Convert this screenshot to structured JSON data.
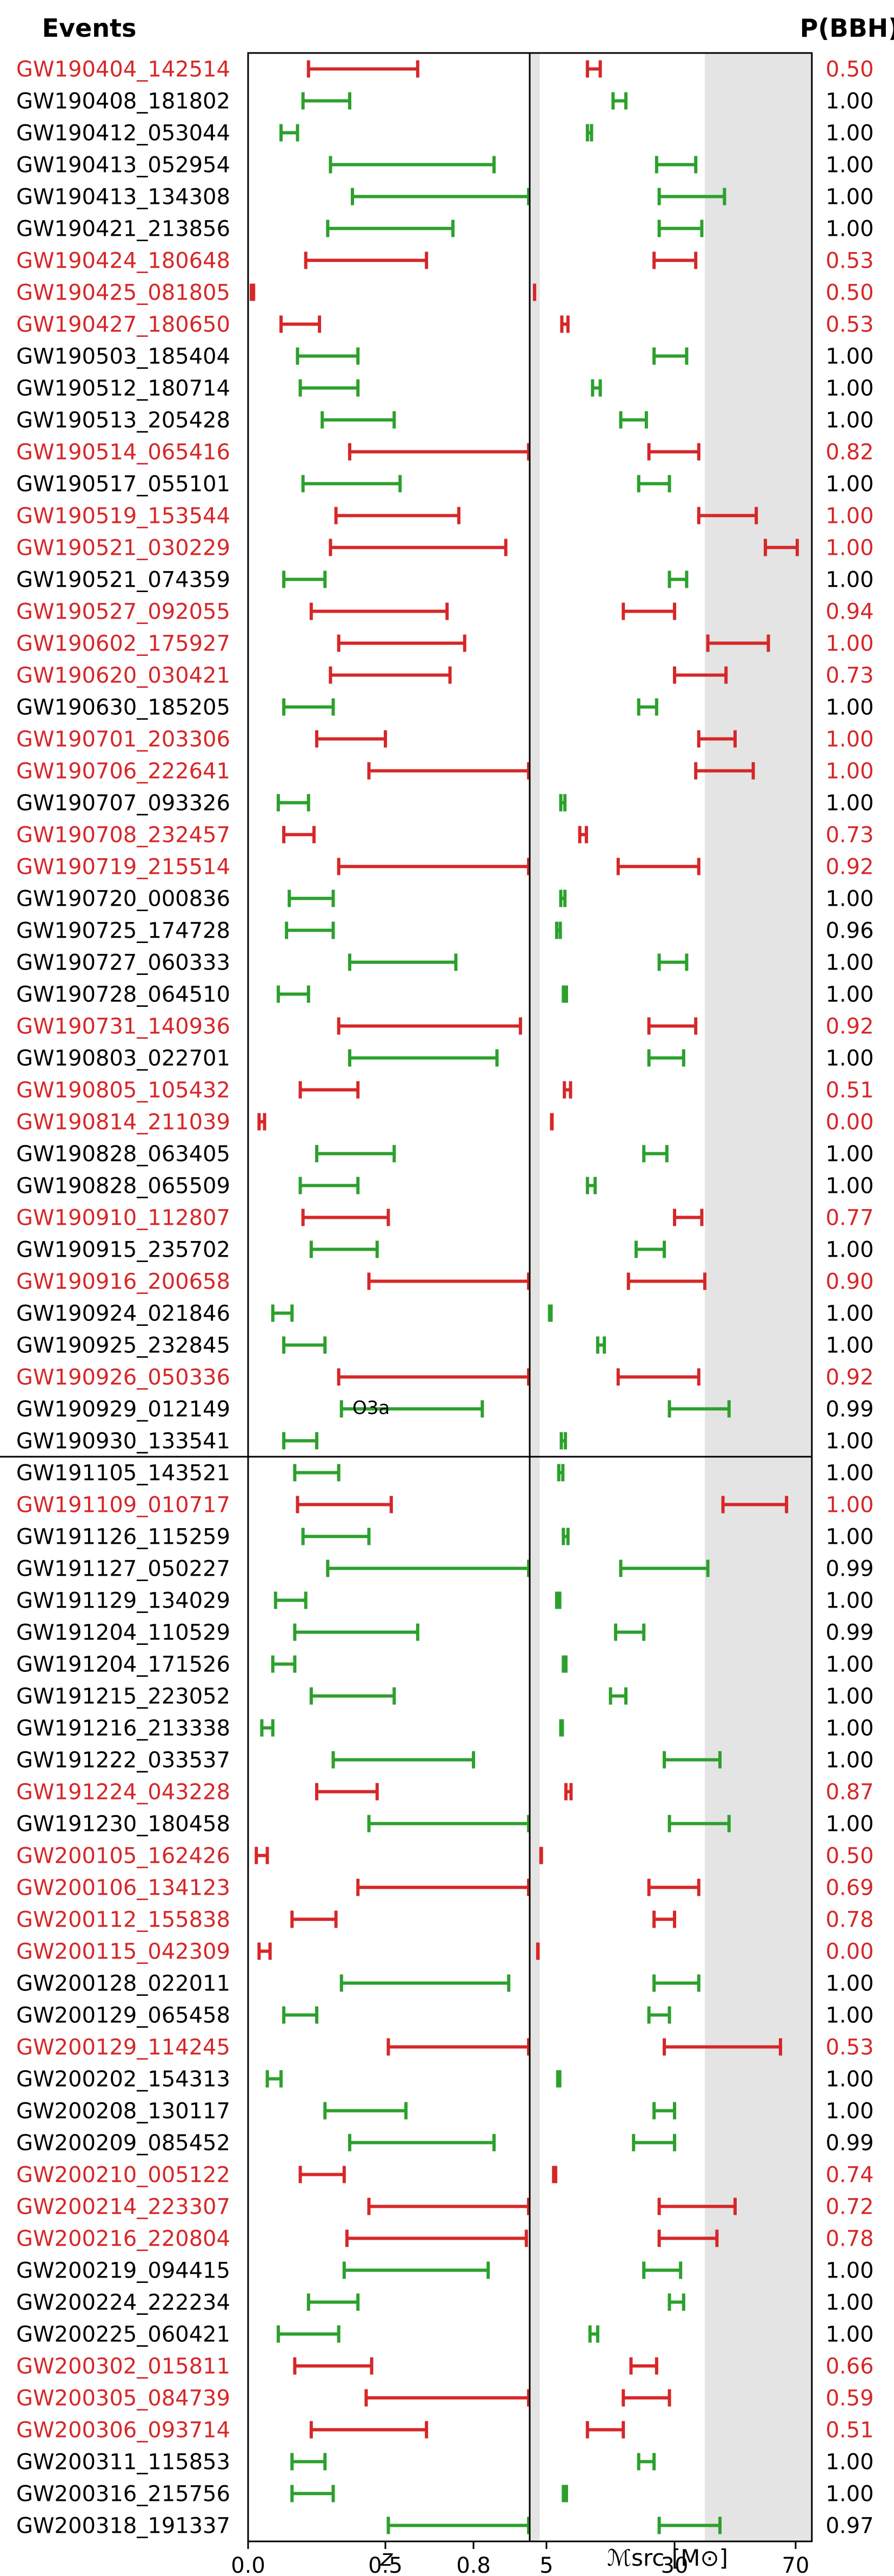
{
  "chart_data": {
    "type": "interval",
    "header_left": "Events",
    "header_right": "P(BBH)",
    "run_label": "O3a",
    "colors": {
      "bbh": "#2ca02c",
      "uncertain": "#d62728",
      "text_uncertain": "#d62728",
      "text_normal": "#000000",
      "shade": "#e4e4e4"
    },
    "left_panel": {
      "xlabel": "z",
      "tick_labels": [
        "0.0",
        "0.5",
        "0.8"
      ],
      "tick_values": [
        0.0,
        0.5,
        0.8
      ]
    },
    "right_panel": {
      "xlabel": "ℳsrc [M⊙]",
      "tick_labels": [
        "5",
        "30",
        "70"
      ],
      "tick_values": [
        5,
        30,
        70
      ]
    },
    "events": [
      {
        "name": "GW190404_142514",
        "z": [
          0.22,
          0.61
        ],
        "mc": [
          13.0,
          15.5
        ],
        "p": "0.50",
        "red": true
      },
      {
        "name": "GW190408_181802",
        "z": [
          0.2,
          0.37
        ],
        "mc": [
          18.0,
          20.5
        ],
        "p": "1.00",
        "red": false
      },
      {
        "name": "GW190412_053044",
        "z": [
          0.12,
          0.18
        ],
        "mc": [
          13.0,
          13.8
        ],
        "p": "1.00",
        "red": false
      },
      {
        "name": "GW190413_052954",
        "z": [
          0.3,
          0.87
        ],
        "mc": [
          26.5,
          37.0
        ],
        "p": "1.00",
        "red": false
      },
      {
        "name": "GW190413_134308",
        "z": [
          0.38,
          1.02
        ],
        "mc": [
          27.0,
          46.5
        ],
        "p": "1.00",
        "red": false
      },
      {
        "name": "GW190421_213856",
        "z": [
          0.29,
          0.73
        ],
        "mc": [
          27.0,
          39.0
        ],
        "p": "1.00",
        "red": false
      },
      {
        "name": "GW190424_180648",
        "z": [
          0.21,
          0.64
        ],
        "mc": [
          26.0,
          37.0
        ],
        "p": "0.53",
        "red": true
      },
      {
        "name": "GW190425_081805",
        "z": [
          0.01,
          0.02
        ],
        "mc": [
          1.44,
          1.46
        ],
        "p": "0.50",
        "red": true
      },
      {
        "name": "GW190427_180650",
        "z": [
          0.12,
          0.26
        ],
        "mc": [
          8.0,
          9.2
        ],
        "p": "0.53",
        "red": true
      },
      {
        "name": "GW190503_185404",
        "z": [
          0.18,
          0.4
        ],
        "mc": [
          26.0,
          34.0
        ],
        "p": "1.00",
        "red": false
      },
      {
        "name": "GW190512_180714",
        "z": [
          0.19,
          0.4
        ],
        "mc": [
          14.0,
          15.5
        ],
        "p": "1.00",
        "red": false
      },
      {
        "name": "GW190513_205428",
        "z": [
          0.27,
          0.53
        ],
        "mc": [
          19.5,
          24.5
        ],
        "p": "1.00",
        "red": false
      },
      {
        "name": "GW190514_065416",
        "z": [
          0.37,
          1.03
        ],
        "mc": [
          25.0,
          38.0
        ],
        "p": "0.82",
        "red": true
      },
      {
        "name": "GW190517_055101",
        "z": [
          0.2,
          0.55
        ],
        "mc": [
          23.0,
          29.0
        ],
        "p": "1.00",
        "red": false
      },
      {
        "name": "GW190519_153544",
        "z": [
          0.32,
          0.75
        ],
        "mc": [
          38.0,
          57.0
        ],
        "p": "1.00",
        "red": true
      },
      {
        "name": "GW190521_030229",
        "z": [
          0.3,
          0.91
        ],
        "mc": [
          60.0,
          72.0
        ],
        "p": "1.00",
        "red": true
      },
      {
        "name": "GW190521_074359",
        "z": [
          0.13,
          0.28
        ],
        "mc": [
          29.0,
          34.0
        ],
        "p": "1.00",
        "red": false
      },
      {
        "name": "GW190527_092055",
        "z": [
          0.23,
          0.71
        ],
        "mc": [
          20.0,
          30.0
        ],
        "p": "0.94",
        "red": true
      },
      {
        "name": "GW190602_175927",
        "z": [
          0.33,
          0.77
        ],
        "mc": [
          41.0,
          61.0
        ],
        "p": "1.00",
        "red": true
      },
      {
        "name": "GW190620_030421",
        "z": [
          0.3,
          0.72
        ],
        "mc": [
          30.0,
          47.0
        ],
        "p": "0.73",
        "red": true
      },
      {
        "name": "GW190630_185205",
        "z": [
          0.13,
          0.31
        ],
        "mc": [
          23.0,
          26.5
        ],
        "p": "1.00",
        "red": false
      },
      {
        "name": "GW190701_203306",
        "z": [
          0.25,
          0.5
        ],
        "mc": [
          38.0,
          50.0
        ],
        "p": "1.00",
        "red": true
      },
      {
        "name": "GW190706_222641",
        "z": [
          0.44,
          1.04
        ],
        "mc": [
          37.0,
          56.0
        ],
        "p": "1.00",
        "red": true
      },
      {
        "name": "GW190707_093326",
        "z": [
          0.11,
          0.22
        ],
        "mc": [
          7.8,
          8.6
        ],
        "p": "1.00",
        "red": false
      },
      {
        "name": "GW190708_232457",
        "z": [
          0.13,
          0.24
        ],
        "mc": [
          11.5,
          12.8
        ],
        "p": "0.73",
        "red": true
      },
      {
        "name": "GW190719_215514",
        "z": [
          0.33,
          1.08
        ],
        "mc": [
          19.0,
          38.0
        ],
        "p": "0.92",
        "red": true
      },
      {
        "name": "GW190720_000836",
        "z": [
          0.15,
          0.31
        ],
        "mc": [
          7.8,
          8.6
        ],
        "p": "1.00",
        "red": false
      },
      {
        "name": "GW190725_174728",
        "z": [
          0.14,
          0.31
        ],
        "mc": [
          7.0,
          7.7
        ],
        "p": "0.96",
        "red": false
      },
      {
        "name": "GW190727_060333",
        "z": [
          0.37,
          0.74
        ],
        "mc": [
          27.0,
          34.0
        ],
        "p": "1.00",
        "red": false
      },
      {
        "name": "GW190728_064510",
        "z": [
          0.11,
          0.22
        ],
        "mc": [
          8.3,
          8.9
        ],
        "p": "1.00",
        "red": false
      },
      {
        "name": "GW190731_140936",
        "z": [
          0.33,
          0.96
        ],
        "mc": [
          25.0,
          37.0
        ],
        "p": "0.92",
        "red": true
      },
      {
        "name": "GW190803_022701",
        "z": [
          0.37,
          0.88
        ],
        "mc": [
          25.0,
          33.0
        ],
        "p": "1.00",
        "red": false
      },
      {
        "name": "GW190805_105432",
        "z": [
          0.19,
          0.4
        ],
        "mc": [
          8.5,
          9.7
        ],
        "p": "0.51",
        "red": true
      },
      {
        "name": "GW190814_211039",
        "z": [
          0.04,
          0.06
        ],
        "mc": [
          6.0,
          6.1
        ],
        "p": "0.00",
        "red": true
      },
      {
        "name": "GW190828_063405",
        "z": [
          0.25,
          0.53
        ],
        "mc": [
          24.0,
          28.5
        ],
        "p": "1.00",
        "red": false
      },
      {
        "name": "GW190828_065509",
        "z": [
          0.19,
          0.4
        ],
        "mc": [
          13.0,
          14.5
        ],
        "p": "1.00",
        "red": false
      },
      {
        "name": "GW190910_112807",
        "z": [
          0.2,
          0.51
        ],
        "mc": [
          30.0,
          39.0
        ],
        "p": "0.77",
        "red": true
      },
      {
        "name": "GW190915_235702",
        "z": [
          0.23,
          0.47
        ],
        "mc": [
          22.5,
          28.0
        ],
        "p": "1.00",
        "red": false
      },
      {
        "name": "GW190916_200658",
        "z": [
          0.44,
          1.1
        ],
        "mc": [
          21.0,
          40.0
        ],
        "p": "0.90",
        "red": true
      },
      {
        "name": "GW190924_021846",
        "z": [
          0.09,
          0.16
        ],
        "mc": [
          5.6,
          5.9
        ],
        "p": "1.00",
        "red": false
      },
      {
        "name": "GW190925_232845",
        "z": [
          0.13,
          0.28
        ],
        "mc": [
          15.0,
          16.3
        ],
        "p": "1.00",
        "red": false
      },
      {
        "name": "GW190926_050336",
        "z": [
          0.33,
          1.09
        ],
        "mc": [
          19.0,
          38.0
        ],
        "p": "0.92",
        "red": true
      },
      {
        "name": "GW190929_012149",
        "z": [
          0.34,
          0.83
        ],
        "mc": [
          29.0,
          48.0
        ],
        "p": "0.99",
        "red": false
      },
      {
        "name": "GW190930_133541",
        "z": [
          0.13,
          0.25
        ],
        "mc": [
          7.9,
          8.7
        ],
        "p": "1.00",
        "red": false
      },
      {
        "name": "GW191105_143521",
        "z": [
          0.17,
          0.33
        ],
        "mc": [
          7.4,
          8.2
        ],
        "p": "1.00",
        "red": false
      },
      {
        "name": "GW191109_010717",
        "z": [
          0.18,
          0.52
        ],
        "mc": [
          46.0,
          67.0
        ],
        "p": "1.00",
        "red": true
      },
      {
        "name": "GW191126_115259",
        "z": [
          0.2,
          0.44
        ],
        "mc": [
          8.3,
          9.2
        ],
        "p": "1.00",
        "red": false
      },
      {
        "name": "GW191127_050227",
        "z": [
          0.29,
          0.99
        ],
        "mc": [
          19.5,
          41.0
        ],
        "p": "0.99",
        "red": false
      },
      {
        "name": "GW191129_134029",
        "z": [
          0.1,
          0.21
        ],
        "mc": [
          7.0,
          7.6
        ],
        "p": "1.00",
        "red": false
      },
      {
        "name": "GW191204_110529",
        "z": [
          0.17,
          0.61
        ],
        "mc": [
          18.5,
          24.0
        ],
        "p": "0.99",
        "red": false
      },
      {
        "name": "GW191204_171526",
        "z": [
          0.09,
          0.17
        ],
        "mc": [
          8.3,
          8.8
        ],
        "p": "1.00",
        "red": false
      },
      {
        "name": "GW191215_223052",
        "z": [
          0.23,
          0.53
        ],
        "mc": [
          17.5,
          20.5
        ],
        "p": "1.00",
        "red": false
      },
      {
        "name": "GW191216_213338",
        "z": [
          0.05,
          0.09
        ],
        "mc": [
          7.8,
          8.1
        ],
        "p": "1.00",
        "red": false
      },
      {
        "name": "GW191222_033537",
        "z": [
          0.31,
          0.8
        ],
        "mc": [
          28.0,
          45.0
        ],
        "p": "1.00",
        "red": false
      },
      {
        "name": "GW191224_043228",
        "z": [
          0.25,
          0.47
        ],
        "mc": [
          8.8,
          9.8
        ],
        "p": "0.87",
        "red": true
      },
      {
        "name": "GW191230_180458",
        "z": [
          0.44,
          1.06
        ],
        "mc": [
          29.0,
          48.0
        ],
        "p": "1.00",
        "red": false
      },
      {
        "name": "GW200105_162426",
        "z": [
          0.03,
          0.07
        ],
        "mc": [
          3.35,
          3.5
        ],
        "p": "0.50",
        "red": true
      },
      {
        "name": "GW200106_134123",
        "z": [
          0.4,
          1.06
        ],
        "mc": [
          25.0,
          38.0
        ],
        "p": "0.69",
        "red": true
      },
      {
        "name": "GW200112_155838",
        "z": [
          0.16,
          0.32
        ],
        "mc": [
          26.0,
          30.0
        ],
        "p": "0.78",
        "red": true
      },
      {
        "name": "GW200115_042309",
        "z": [
          0.04,
          0.08
        ],
        "mc": [
          2.4,
          2.5
        ],
        "p": "0.00",
        "red": true
      },
      {
        "name": "GW200128_022011",
        "z": [
          0.34,
          0.92
        ],
        "mc": [
          26.0,
          38.0
        ],
        "p": "1.00",
        "red": false
      },
      {
        "name": "GW200129_065458",
        "z": [
          0.13,
          0.25
        ],
        "mc": [
          25.0,
          29.0
        ],
        "p": "1.00",
        "red": false
      },
      {
        "name": "GW200129_114245",
        "z": [
          0.51,
          1.14
        ],
        "mc": [
          28.0,
          65.0
        ],
        "p": "0.53",
        "red": true
      },
      {
        "name": "GW200202_154313",
        "z": [
          0.07,
          0.12
        ],
        "mc": [
          7.2,
          7.6
        ],
        "p": "1.00",
        "red": false
      },
      {
        "name": "GW200208_130117",
        "z": [
          0.28,
          0.57
        ],
        "mc": [
          26.0,
          30.0
        ],
        "p": "1.00",
        "red": false
      },
      {
        "name": "GW200209_085452",
        "z": [
          0.37,
          0.87
        ],
        "mc": [
          22.0,
          30.0
        ],
        "p": "0.99",
        "red": false
      },
      {
        "name": "GW200210_005122",
        "z": [
          0.19,
          0.35
        ],
        "mc": [
          6.4,
          6.8
        ],
        "p": "0.74",
        "red": true
      },
      {
        "name": "GW200214_223307",
        "z": [
          0.44,
          1.1
        ],
        "mc": [
          27.0,
          50.0
        ],
        "p": "0.72",
        "red": true
      },
      {
        "name": "GW200216_220804",
        "z": [
          0.36,
          0.98
        ],
        "mc": [
          27.0,
          44.0
        ],
        "p": "0.78",
        "red": true
      },
      {
        "name": "GW200219_094415",
        "z": [
          0.35,
          0.85
        ],
        "mc": [
          24.0,
          32.0
        ],
        "p": "1.00",
        "red": false
      },
      {
        "name": "GW200224_222234",
        "z": [
          0.22,
          0.4
        ],
        "mc": [
          29.0,
          33.0
        ],
        "p": "1.00",
        "red": false
      },
      {
        "name": "GW200225_060421",
        "z": [
          0.11,
          0.33
        ],
        "mc": [
          13.5,
          15.0
        ],
        "p": "1.00",
        "red": false
      },
      {
        "name": "GW200302_015811",
        "z": [
          0.17,
          0.45
        ],
        "mc": [
          21.5,
          26.5
        ],
        "p": "0.66",
        "red": true
      },
      {
        "name": "GW200305_084739",
        "z": [
          0.43,
          1.08
        ],
        "mc": [
          20.0,
          29.0
        ],
        "p": "0.59",
        "red": true
      },
      {
        "name": "GW200306_093714",
        "z": [
          0.23,
          0.64
        ],
        "mc": [
          13.0,
          20.0
        ],
        "p": "0.51",
        "red": true
      },
      {
        "name": "GW200311_115853",
        "z": [
          0.16,
          0.28
        ],
        "mc": [
          23.0,
          26.0
        ],
        "p": "1.00",
        "red": false
      },
      {
        "name": "GW200316_215756",
        "z": [
          0.16,
          0.31
        ],
        "mc": [
          8.3,
          8.9
        ],
        "p": "1.00",
        "red": false
      },
      {
        "name": "GW200318_191337",
        "z": [
          0.51,
          1.13
        ],
        "mc": [
          27.0,
          45.0
        ],
        "p": "0.97",
        "red": false
      }
    ]
  }
}
